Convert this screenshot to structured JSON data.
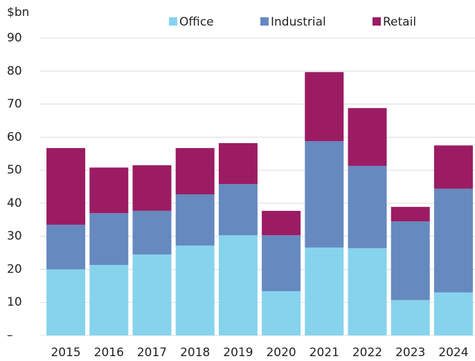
{
  "chart_data": {
    "type": "stacked_bar",
    "y_axis_label": "$bn",
    "categories": [
      "2015",
      "2016",
      "2017",
      "2018",
      "2019",
      "2020",
      "2021",
      "2022",
      "2023",
      "2024"
    ],
    "series": [
      {
        "name": "Office",
        "color": "#86d3ec",
        "values": [
          20,
          21.3,
          24.5,
          27.2,
          30.3,
          13.4,
          26.6,
          26.4,
          10.7,
          13.0
        ]
      },
      {
        "name": "Industrial",
        "color": "#6689c0",
        "values": [
          13.5,
          15.7,
          13.2,
          15.5,
          15.5,
          16.9,
          32.2,
          24.9,
          23.8,
          31.4
        ]
      },
      {
        "name": "Retail",
        "color": "#9b1c63",
        "values": [
          23.2,
          13.8,
          13.8,
          14.0,
          12.4,
          7.4,
          20.9,
          17.5,
          4.4,
          13.1
        ]
      }
    ],
    "ylim": [
      0,
      90
    ],
    "yticks": [
      {
        "value": 0,
        "label": "–"
      },
      10,
      20,
      30,
      40,
      50,
      60,
      70,
      80,
      90
    ],
    "grid": true,
    "legend": "top"
  }
}
